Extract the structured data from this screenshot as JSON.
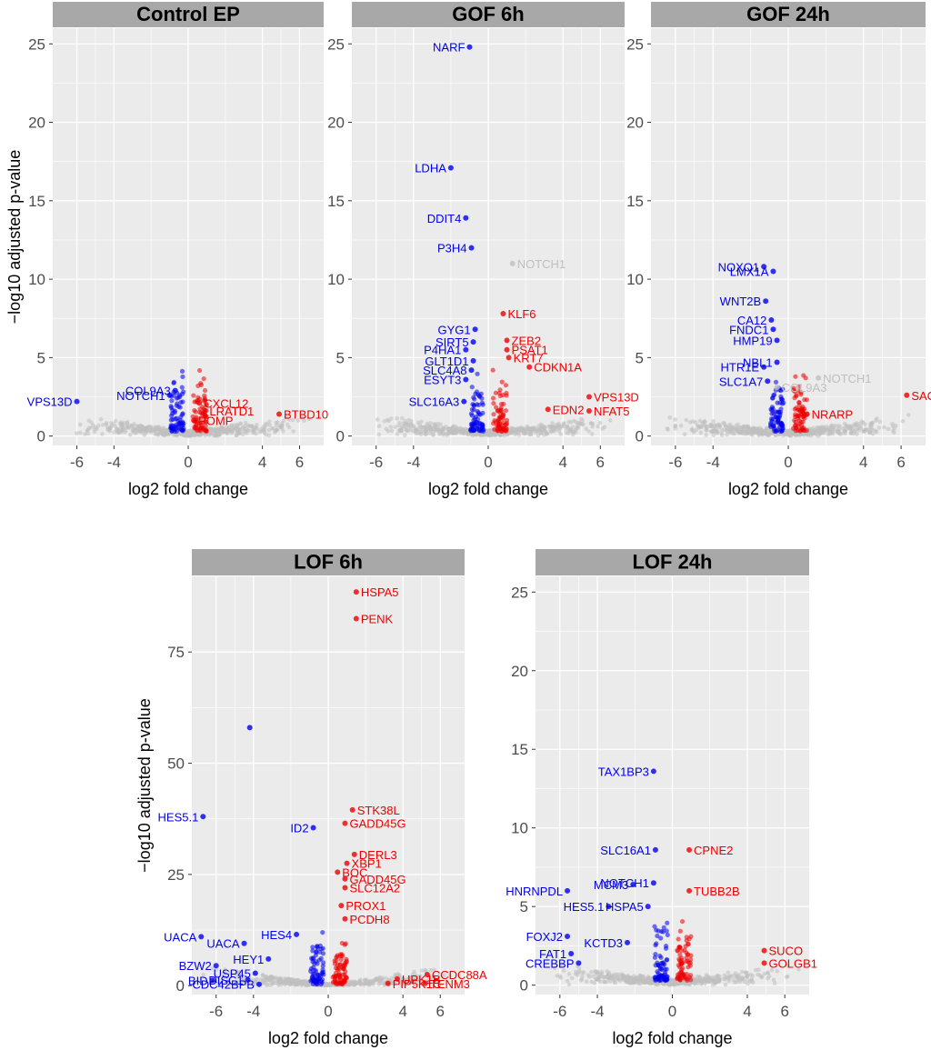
{
  "colors": {
    "down": "#0000ee",
    "up": "#ee0000",
    "ns": "#bfbfbf",
    "panel_bg": "#ebebeb",
    "strip_bg": "#a8a8a8",
    "grid": "#ffffff"
  },
  "ylabel": "−log10 adjusted p-value",
  "xlabel": "log2 fold change",
  "chart_data": [
    {
      "type": "scatter",
      "title": "Control EP",
      "xlabel": "log2 fold change",
      "ylabel": "−log10 adjusted p-value",
      "xlim": [
        -7.3,
        7.3
      ],
      "ylim": [
        -0.6,
        26
      ],
      "xticks": [
        -6,
        -4,
        0,
        4,
        6
      ],
      "yticks": [
        0,
        5,
        10,
        15,
        20,
        25
      ],
      "labels": [
        {
          "text": "VPS13D",
          "x": -6.0,
          "y": 2.2,
          "color": "down"
        },
        {
          "text": "COL9A3",
          "x": -0.7,
          "y": 2.9,
          "color": "down"
        },
        {
          "text": "NOTCH1",
          "x": -1.0,
          "y": 2.6,
          "color": "down"
        },
        {
          "text": "CXCL12",
          "x": 0.6,
          "y": 2.1,
          "color": "up"
        },
        {
          "text": "LRATD1",
          "x": 0.9,
          "y": 1.6,
          "color": "up"
        },
        {
          "text": "POMP",
          "x": 0.3,
          "y": 1.0,
          "color": "up"
        },
        {
          "text": "BTBD10",
          "x": 4.9,
          "y": 1.4,
          "color": "up"
        }
      ]
    },
    {
      "type": "scatter",
      "title": "GOF 6h",
      "xlabel": "log2 fold change",
      "xlim": [
        -7.3,
        7.3
      ],
      "ylim": [
        -0.6,
        26
      ],
      "xticks": [
        -6,
        -4,
        0,
        4,
        6
      ],
      "yticks": [
        0,
        5,
        10,
        15,
        20,
        25
      ],
      "labels": [
        {
          "text": "NARF",
          "x": -1.0,
          "y": 24.8,
          "color": "down"
        },
        {
          "text": "LDHA",
          "x": -2.0,
          "y": 17.1,
          "color": "down"
        },
        {
          "text": "DDIT4",
          "x": -1.2,
          "y": 13.9,
          "color": "down"
        },
        {
          "text": "P3H4",
          "x": -0.9,
          "y": 12.0,
          "color": "down"
        },
        {
          "text": "NOTCH1",
          "x": 1.3,
          "y": 11.0,
          "color": "ns"
        },
        {
          "text": "GYG1",
          "x": -0.7,
          "y": 6.8,
          "color": "down"
        },
        {
          "text": "SIRT5",
          "x": -0.8,
          "y": 6.0,
          "color": "down"
        },
        {
          "text": "P4HA1",
          "x": -1.2,
          "y": 5.5,
          "color": "down"
        },
        {
          "text": "GLT1D1",
          "x": -0.8,
          "y": 4.8,
          "color": "down"
        },
        {
          "text": "SLC4A8",
          "x": -0.9,
          "y": 4.2,
          "color": "down"
        },
        {
          "text": "ESYT3",
          "x": -1.2,
          "y": 3.6,
          "color": "down"
        },
        {
          "text": "SLC16A3",
          "x": -1.3,
          "y": 2.2,
          "color": "down"
        },
        {
          "text": "KLF6",
          "x": 0.8,
          "y": 7.8,
          "color": "up"
        },
        {
          "text": "ZEB2",
          "x": 1.0,
          "y": 6.1,
          "color": "up"
        },
        {
          "text": "PSAT1",
          "x": 1.0,
          "y": 5.5,
          "color": "up"
        },
        {
          "text": "KRT7",
          "x": 1.1,
          "y": 5.0,
          "color": "up"
        },
        {
          "text": "CDKN1A",
          "x": 2.2,
          "y": 4.4,
          "color": "up"
        },
        {
          "text": "VPS13D",
          "x": 5.4,
          "y": 2.5,
          "color": "up"
        },
        {
          "text": "EDN2",
          "x": 3.2,
          "y": 1.7,
          "color": "up"
        },
        {
          "text": "NFAT5",
          "x": 5.4,
          "y": 1.6,
          "color": "up"
        }
      ]
    },
    {
      "type": "scatter",
      "title": "GOF 24h",
      "xlabel": "log2 fold change",
      "xlim": [
        -7.3,
        7.3
      ],
      "ylim": [
        -0.6,
        26
      ],
      "xticks": [
        -6,
        -4,
        0,
        4,
        6
      ],
      "yticks": [
        0,
        5,
        10,
        15,
        20,
        25
      ],
      "labels": [
        {
          "text": "NOXO1",
          "x": -1.3,
          "y": 10.8,
          "color": "down"
        },
        {
          "text": "LMX1A",
          "x": -0.8,
          "y": 10.5,
          "color": "down"
        },
        {
          "text": "WNT2B",
          "x": -1.2,
          "y": 8.6,
          "color": "down"
        },
        {
          "text": "CA12",
          "x": -0.9,
          "y": 7.4,
          "color": "down"
        },
        {
          "text": "FNDC1",
          "x": -0.8,
          "y": 6.8,
          "color": "down"
        },
        {
          "text": "HMP19",
          "x": -0.6,
          "y": 6.1,
          "color": "down"
        },
        {
          "text": "NBL1",
          "x": -0.6,
          "y": 4.7,
          "color": "down"
        },
        {
          "text": "HTR1E",
          "x": -1.3,
          "y": 4.4,
          "color": "down"
        },
        {
          "text": "SLC1A7",
          "x": -1.1,
          "y": 3.5,
          "color": "down"
        },
        {
          "text": "COL9A3",
          "x": -0.6,
          "y": 3.1,
          "color": "ns"
        },
        {
          "text": "NOTCH1",
          "x": 1.6,
          "y": 3.7,
          "color": "ns"
        },
        {
          "text": "NRARP",
          "x": 1.0,
          "y": 1.4,
          "color": "up"
        },
        {
          "text": "SACS",
          "x": 6.3,
          "y": 2.6,
          "color": "up"
        }
      ]
    },
    {
      "type": "scatter",
      "title": "LOF 6h",
      "xlabel": "log2 fold change",
      "ylabel": "−log10 adjusted p-value",
      "xlim": [
        -7.3,
        7.3
      ],
      "ylim": [
        -2,
        92
      ],
      "xticks": [
        -6,
        -4,
        0,
        4,
        6
      ],
      "yticks": [
        0,
        25,
        50,
        75
      ],
      "labels": [
        {
          "text": "HSPA5",
          "x": 1.5,
          "y": 88.5,
          "color": "up"
        },
        {
          "text": "PENK",
          "x": 1.5,
          "y": 82.5,
          "color": "up"
        },
        {
          "text": "",
          "x": -4.2,
          "y": 58.0,
          "color": "down"
        },
        {
          "text": "HES5.1",
          "x": -6.7,
          "y": 38.0,
          "color": "down"
        },
        {
          "text": "ID2",
          "x": -0.8,
          "y": 35.5,
          "color": "down"
        },
        {
          "text": "STK38L",
          "x": 1.3,
          "y": 39.5,
          "color": "up"
        },
        {
          "text": "GADD45G",
          "x": 0.9,
          "y": 36.5,
          "color": "up"
        },
        {
          "text": "DERL3",
          "x": 1.4,
          "y": 29.5,
          "color": "up"
        },
        {
          "text": "XBP1",
          "x": 1.0,
          "y": 27.5,
          "color": "up"
        },
        {
          "text": "BOC",
          "x": 0.5,
          "y": 25.5,
          "color": "up"
        },
        {
          "text": "GADD45G",
          "x": 0.9,
          "y": 24.0,
          "color": "up"
        },
        {
          "text": "SLC12A2",
          "x": 0.9,
          "y": 22.0,
          "color": "up"
        },
        {
          "text": "PROX1",
          "x": 0.7,
          "y": 18.0,
          "color": "up"
        },
        {
          "text": "PCDH8",
          "x": 0.9,
          "y": 15.0,
          "color": "up"
        },
        {
          "text": "UACA",
          "x": -6.8,
          "y": 11.0,
          "color": "down"
        },
        {
          "text": "HES4",
          "x": -1.7,
          "y": 11.5,
          "color": "down"
        },
        {
          "text": "HEY1",
          "x": -3.2,
          "y": 6.0,
          "color": "down"
        },
        {
          "text": "UACA",
          "x": -4.5,
          "y": 9.5,
          "color": "down"
        },
        {
          "text": "BZW2",
          "x": -6.0,
          "y": 4.5,
          "color": "down"
        },
        {
          "text": "USP45",
          "x": -3.9,
          "y": 2.8,
          "color": "down"
        },
        {
          "text": "DISC1",
          "x": -4.3,
          "y": 1.3,
          "color": "down"
        },
        {
          "text": "CDC42BPB",
          "x": -3.7,
          "y": 0.3,
          "color": "down"
        },
        {
          "text": "BID",
          "x": -6.2,
          "y": 1.2,
          "color": "down"
        },
        {
          "text": "UPK1B",
          "x": 3.7,
          "y": 1.5,
          "color": "up"
        },
        {
          "text": "CCDC88A",
          "x": 5.3,
          "y": 2.5,
          "color": "up"
        },
        {
          "text": "PIP5K1C",
          "x": 3.2,
          "y": 0.5,
          "color": "up"
        },
        {
          "text": "TENM3",
          "x": 5.2,
          "y": 0.5,
          "color": "up"
        }
      ]
    },
    {
      "type": "scatter",
      "title": "LOF 24h",
      "xlabel": "log2 fold change",
      "xlim": [
        -7.3,
        7.3
      ],
      "ylim": [
        -0.6,
        26
      ],
      "xticks": [
        -6,
        -4,
        0,
        4,
        6
      ],
      "yticks": [
        0,
        5,
        10,
        15,
        20,
        25
      ],
      "labels": [
        {
          "text": "TAX1BP3",
          "x": -1.0,
          "y": 13.6,
          "color": "down"
        },
        {
          "text": "SLC16A1",
          "x": -0.9,
          "y": 8.6,
          "color": "down"
        },
        {
          "text": "CPNE2",
          "x": 0.9,
          "y": 8.6,
          "color": "up"
        },
        {
          "text": "HNRNPDL",
          "x": -5.6,
          "y": 6.0,
          "color": "down"
        },
        {
          "text": "MCM3",
          "x": -2.1,
          "y": 6.4,
          "color": "down"
        },
        {
          "text": "NOTCH1",
          "x": -1.0,
          "y": 6.5,
          "color": "down"
        },
        {
          "text": "TUBB2B",
          "x": 0.9,
          "y": 6.0,
          "color": "up"
        },
        {
          "text": "HES5.1",
          "x": -3.4,
          "y": 5.0,
          "color": "down"
        },
        {
          "text": "HSPA5",
          "x": -1.3,
          "y": 5.0,
          "color": "down"
        },
        {
          "text": "FOXJ2",
          "x": -5.6,
          "y": 3.1,
          "color": "down"
        },
        {
          "text": "KCTD3",
          "x": -2.4,
          "y": 2.7,
          "color": "down"
        },
        {
          "text": "FAT1",
          "x": -5.4,
          "y": 2.0,
          "color": "down"
        },
        {
          "text": "CREBBP",
          "x": -5.0,
          "y": 1.4,
          "color": "down"
        },
        {
          "text": "SUCO",
          "x": 4.9,
          "y": 2.2,
          "color": "up"
        },
        {
          "text": "GOLGB1",
          "x": 4.9,
          "y": 1.4,
          "color": "up"
        }
      ]
    }
  ]
}
